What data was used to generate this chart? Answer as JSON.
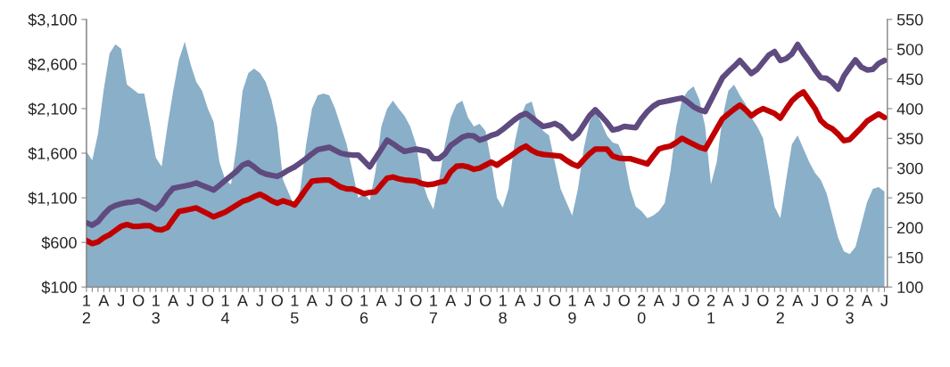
{
  "chart_data": {
    "type": "line",
    "categories": [
      "1\n2",
      null,
      null,
      "A",
      null,
      null,
      "J",
      null,
      null,
      "O",
      null,
      null,
      "1\n3",
      null,
      null,
      "A",
      null,
      null,
      "J",
      null,
      null,
      "O",
      null,
      null,
      "1\n4",
      null,
      null,
      "A",
      null,
      null,
      "J",
      null,
      null,
      "O",
      null,
      null,
      "1\n5",
      null,
      null,
      "A",
      null,
      null,
      "J",
      null,
      null,
      "O",
      null,
      null,
      "1\n6",
      null,
      null,
      "A",
      null,
      null,
      "J",
      null,
      null,
      "O",
      null,
      null,
      "1\n7",
      null,
      null,
      "A",
      null,
      null,
      "J",
      null,
      null,
      "O",
      null,
      null,
      "1\n8",
      null,
      null,
      "A",
      null,
      null,
      "J",
      null,
      null,
      "O",
      null,
      null,
      "1\n9",
      null,
      null,
      "A",
      null,
      null,
      "J",
      null,
      null,
      "O",
      null,
      null,
      "2\n0",
      null,
      null,
      "A",
      null,
      null,
      "J",
      null,
      null,
      "O",
      null,
      null,
      "2\n1",
      null,
      null,
      "A",
      null,
      null,
      "J",
      null,
      null,
      "O",
      null,
      null,
      "2\n2",
      null,
      null,
      "A",
      null,
      null,
      "J",
      null,
      null,
      "O",
      null,
      null,
      "2\n3",
      null,
      null,
      "A",
      null,
      null,
      "J"
    ],
    "series": [
      {
        "type": "area",
        "axis": "y",
        "color": "#8aafc8",
        "values": [
          1620,
          1520,
          1820,
          2320,
          2720,
          2820,
          2770,
          2370,
          2320,
          2270,
          2270,
          1920,
          1550,
          1450,
          1900,
          2300,
          2650,
          2850,
          2600,
          2400,
          2300,
          2100,
          1950,
          1500,
          1300,
          1250,
          1700,
          2300,
          2500,
          2550,
          2500,
          2400,
          2200,
          1900,
          1300,
          1150,
          1000,
          1200,
          1700,
          2100,
          2250,
          2270,
          2250,
          2100,
          1900,
          1700,
          1400,
          1100,
          1150,
          1070,
          1400,
          1900,
          2100,
          2190,
          2100,
          2020,
          1900,
          1700,
          1300,
          1100,
          970,
          1300,
          1700,
          2000,
          2150,
          2190,
          2000,
          1900,
          1930,
          1850,
          1500,
          1100,
          990,
          1200,
          1700,
          2000,
          2150,
          2180,
          1950,
          1850,
          1800,
          1500,
          1200,
          1050,
          900,
          1200,
          1650,
          1950,
          2070,
          1950,
          1800,
          1720,
          1700,
          1550,
          1200,
          1000,
          950,
          870,
          900,
          950,
          1040,
          1400,
          1900,
          2200,
          2300,
          2350,
          2200,
          1900,
          1250,
          1500,
          2000,
          2300,
          2370,
          2250,
          2150,
          2000,
          1900,
          1770,
          1400,
          1000,
          870,
          1300,
          1700,
          1800,
          1650,
          1500,
          1380,
          1300,
          1150,
          900,
          650,
          500,
          470,
          550,
          800,
          1050,
          1200,
          1220,
          1170
        ]
      },
      {
        "axis": "y2",
        "color": "#5f4b7f",
        "values": [
          208,
          204,
          210,
          222,
          232,
          237,
          240,
          242,
          243,
          245,
          241,
          236,
          231,
          240,
          255,
          266,
          268,
          270,
          272,
          275,
          271,
          267,
          263,
          271,
          279,
          287,
          295,
          305,
          309,
          302,
          294,
          290,
          288,
          286,
          291,
          297,
          302,
          309,
          316,
          324,
          331,
          333,
          335,
          330,
          325,
          323,
          322,
          322,
          312,
          302,
          317,
          332,
          347,
          341,
          334,
          328,
          330,
          332,
          330,
          328,
          316,
          316,
          324,
          338,
          345,
          352,
          355,
          354,
          347,
          350,
          355,
          358,
          365,
          373,
          381,
          388,
          392,
          385,
          377,
          370,
          372,
          375,
          370,
          360,
          350,
          358,
          373,
          388,
          398,
          388,
          377,
          364,
          366,
          370,
          369,
          368,
          383,
          395,
          404,
          410,
          412,
          414,
          416,
          418,
          411,
          403,
          398,
          395,
          414,
          433,
          452,
          462,
          471,
          481,
          470,
          459,
          466,
          478,
          490,
          496,
          481,
          484,
          492,
          508,
          493,
          480,
          465,
          452,
          451,
          444,
          433,
          455,
          469,
          482,
          470,
          465,
          466,
          476,
          481
        ]
      },
      {
        "axis": "y2",
        "color": "#c00000",
        "values": [
          178,
          173,
          176,
          183,
          188,
          195,
          202,
          205,
          202,
          202,
          203,
          203,
          197,
          196,
          200,
          214,
          227,
          229,
          231,
          233,
          228,
          223,
          218,
          222,
          226,
          232,
          238,
          244,
          247,
          252,
          256,
          251,
          245,
          241,
          245,
          242,
          238,
          251,
          265,
          278,
          279,
          280,
          280,
          274,
          268,
          265,
          265,
          261,
          257,
          259,
          260,
          272,
          283,
          285,
          282,
          280,
          279,
          278,
          274,
          272,
          273,
          276,
          278,
          294,
          303,
          304,
          302,
          298,
          300,
          305,
          310,
          305,
          312,
          318,
          325,
          332,
          337,
          330,
          325,
          323,
          322,
          321,
          320,
          313,
          307,
          303,
          314,
          324,
          332,
          332,
          332,
          320,
          317,
          316,
          316,
          313,
          310,
          307,
          320,
          332,
          335,
          337,
          343,
          350,
          345,
          340,
          335,
          332,
          349,
          366,
          383,
          391,
          399,
          406,
          398,
          388,
          395,
          400,
          396,
          392,
          384,
          399,
          413,
          422,
          428,
          414,
          400,
          380,
          371,
          366,
          357,
          346,
          348,
          358,
          368,
          379,
          385,
          391,
          385
        ]
      }
    ],
    "ylim": [
      100,
      3100
    ],
    "yticks": [
      {
        "value": 100,
        "label": "$100"
      },
      {
        "value": 600,
        "label": "$600"
      },
      {
        "value": 1100,
        "label": "$1,100"
      },
      {
        "value": 1600,
        "label": "$1,600"
      },
      {
        "value": 2100,
        "label": "$2,100"
      },
      {
        "value": 2600,
        "label": "$2,600"
      },
      {
        "value": 3100,
        "label": "$3,100"
      }
    ],
    "y2lim": [
      100,
      550
    ],
    "y2ticks": [
      100,
      150,
      200,
      250,
      300,
      350,
      400,
      450,
      500,
      550
    ],
    "grid": false,
    "legend": false,
    "marker": "none",
    "line_style": "solid"
  }
}
